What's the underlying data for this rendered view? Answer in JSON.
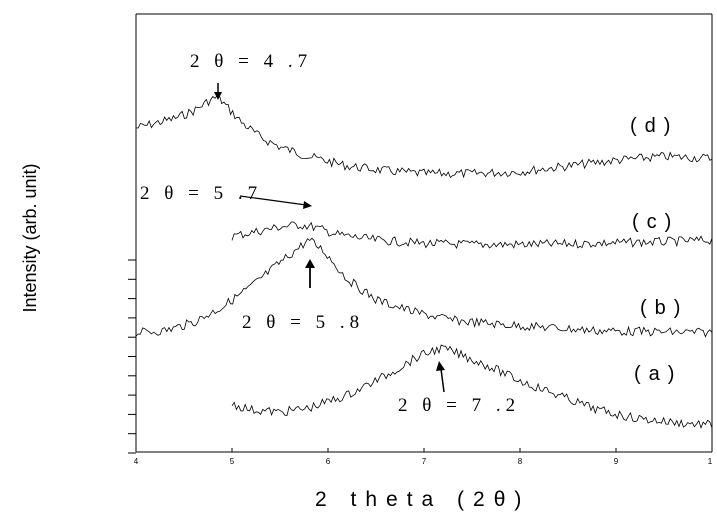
{
  "chart_data": {
    "type": "line",
    "title": "",
    "xlabel": "2 theta (2θ)",
    "ylabel": "Intensity (arb. unit)",
    "xlim": [
      4,
      10
    ],
    "x_ticks": [
      "4",
      "5",
      "6",
      "7",
      "8",
      "9",
      "1"
    ],
    "y_ticks_shown": false,
    "grid": false,
    "series": [
      {
        "name": "(d)",
        "x_range": [
          4,
          10
        ],
        "points": [
          [
            4.0,
            0.6
          ],
          [
            4.2,
            0.65
          ],
          [
            4.4,
            0.7
          ],
          [
            4.6,
            0.78
          ],
          [
            4.75,
            0.88
          ],
          [
            4.85,
            0.93
          ],
          [
            4.95,
            0.82
          ],
          [
            5.1,
            0.66
          ],
          [
            5.3,
            0.5
          ],
          [
            5.5,
            0.4
          ],
          [
            5.8,
            0.3
          ],
          [
            6.2,
            0.2
          ],
          [
            6.6,
            0.15
          ],
          [
            7.0,
            0.12
          ],
          [
            7.5,
            0.12
          ],
          [
            8.0,
            0.14
          ],
          [
            8.5,
            0.2
          ],
          [
            9.0,
            0.26
          ],
          [
            9.5,
            0.3
          ],
          [
            10.0,
            0.28
          ]
        ],
        "label_on_chart": "(d)"
      },
      {
        "name": "(c)",
        "x_range": [
          5,
          10
        ],
        "points": [
          [
            5.0,
            0.25
          ],
          [
            5.3,
            0.35
          ],
          [
            5.5,
            0.42
          ],
          [
            5.7,
            0.46
          ],
          [
            5.85,
            0.42
          ],
          [
            6.1,
            0.28
          ],
          [
            6.5,
            0.18
          ],
          [
            7.0,
            0.12
          ],
          [
            7.5,
            0.1
          ],
          [
            8.0,
            0.1
          ],
          [
            8.5,
            0.11
          ],
          [
            9.0,
            0.13
          ],
          [
            9.5,
            0.15
          ],
          [
            10.0,
            0.18
          ]
        ],
        "label_on_chart": "(c)"
      },
      {
        "name": "(b)",
        "x_range": [
          4,
          10
        ],
        "points": [
          [
            4.0,
            0.1
          ],
          [
            4.3,
            0.12
          ],
          [
            4.6,
            0.2
          ],
          [
            4.9,
            0.35
          ],
          [
            5.2,
            0.55
          ],
          [
            5.5,
            0.78
          ],
          [
            5.7,
            0.93
          ],
          [
            5.8,
            1.0
          ],
          [
            5.95,
            0.9
          ],
          [
            6.2,
            0.62
          ],
          [
            6.5,
            0.42
          ],
          [
            6.9,
            0.3
          ],
          [
            7.3,
            0.22
          ],
          [
            7.8,
            0.18
          ],
          [
            8.3,
            0.15
          ],
          [
            8.8,
            0.12
          ],
          [
            9.3,
            0.11
          ],
          [
            10.0,
            0.1
          ]
        ],
        "label_on_chart": "(b)"
      },
      {
        "name": "(a)",
        "x_range": [
          5,
          10
        ],
        "points": [
          [
            5.0,
            0.25
          ],
          [
            5.2,
            0.18
          ],
          [
            5.5,
            0.15
          ],
          [
            5.8,
            0.2
          ],
          [
            6.2,
            0.35
          ],
          [
            6.6,
            0.58
          ],
          [
            6.9,
            0.78
          ],
          [
            7.1,
            0.88
          ],
          [
            7.2,
            0.9
          ],
          [
            7.4,
            0.82
          ],
          [
            7.7,
            0.68
          ],
          [
            8.0,
            0.52
          ],
          [
            8.4,
            0.35
          ],
          [
            8.8,
            0.18
          ],
          [
            9.2,
            0.08
          ],
          [
            9.6,
            0.03
          ],
          [
            10.0,
            0.0
          ]
        ],
        "label_on_chart": "(a)"
      }
    ],
    "annotations": [
      {
        "text": "2 θ = 4 .7",
        "series": "(d)",
        "x": 4.85
      },
      {
        "text": "2 θ = 5 .7",
        "series": "(c)",
        "x": 5.8
      },
      {
        "text": "2 θ = 5 .8",
        "series": "(b)",
        "x": 5.8
      },
      {
        "text": "2 θ = 7 .2",
        "series": "(a)",
        "x": 7.15
      }
    ]
  }
}
